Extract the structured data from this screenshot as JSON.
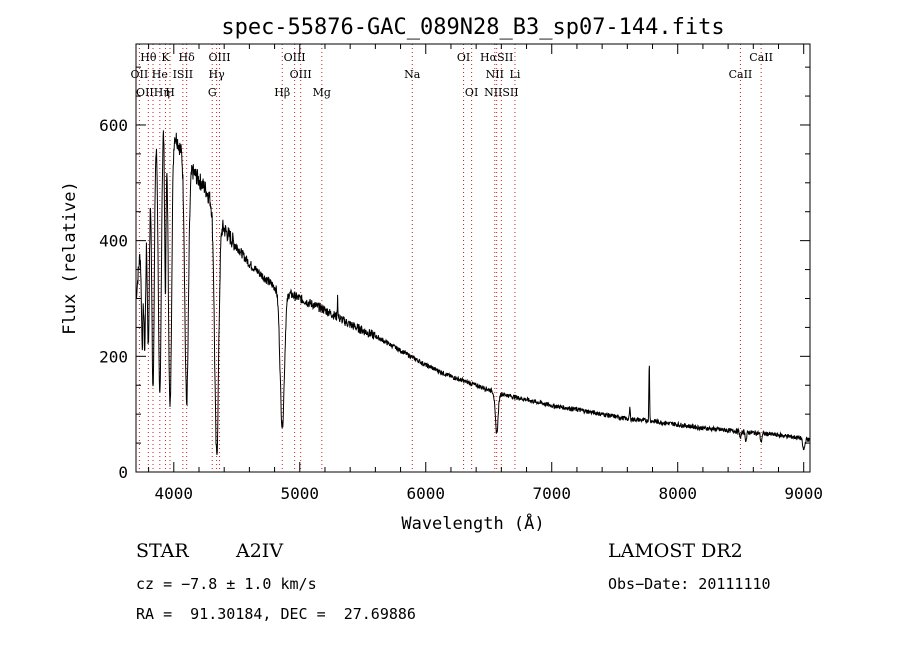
{
  "chart_data": {
    "type": "line",
    "title": "spec-55876-GAC_089N28_B3_sp07-144.fits",
    "xlabel": "Wavelength (Å)",
    "ylabel": "Flux (relative)",
    "xlim": [
      3700,
      9050
    ],
    "ylim": [
      0,
      740
    ],
    "x_ticks": [
      4000,
      5000,
      6000,
      7000,
      8000,
      9000
    ],
    "y_ticks": [
      0,
      200,
      400,
      600
    ],
    "grid": false,
    "series": [
      {
        "name": "spectrum",
        "continuum_points": [
          [
            3700,
            300
          ],
          [
            3760,
            450
          ],
          [
            3820,
            560
          ],
          [
            3880,
            600
          ],
          [
            3950,
            620
          ],
          [
            4050,
            560
          ],
          [
            4150,
            520
          ],
          [
            4250,
            490
          ],
          [
            4400,
            420
          ],
          [
            4500,
            390
          ],
          [
            4600,
            360
          ],
          [
            4700,
            340
          ],
          [
            4800,
            320
          ],
          [
            5000,
            300
          ],
          [
            5200,
            280
          ],
          [
            5400,
            255
          ],
          [
            5600,
            235
          ],
          [
            5800,
            210
          ],
          [
            6000,
            185
          ],
          [
            6200,
            165
          ],
          [
            6400,
            150
          ],
          [
            6600,
            135
          ],
          [
            6800,
            125
          ],
          [
            7000,
            115
          ],
          [
            7200,
            108
          ],
          [
            7400,
            100
          ],
          [
            7600,
            92
          ],
          [
            7800,
            88
          ],
          [
            8000,
            82
          ],
          [
            8200,
            76
          ],
          [
            8400,
            72
          ],
          [
            8600,
            68
          ],
          [
            8800,
            64
          ],
          [
            9000,
            58
          ],
          [
            9050,
            55
          ]
        ],
        "absorption_features": [
          {
            "center": 3750,
            "depth": 200,
            "width": 10
          },
          {
            "center": 3770,
            "depth": 250,
            "width": 10
          },
          {
            "center": 3798,
            "depth": 300,
            "width": 12
          },
          {
            "center": 3835,
            "depth": 420,
            "width": 14
          },
          {
            "center": 3889,
            "depth": 480,
            "width": 16
          },
          {
            "center": 3933,
            "depth": 300,
            "width": 8
          },
          {
            "center": 3970,
            "depth": 500,
            "width": 18
          },
          {
            "center": 4102,
            "depth": 420,
            "width": 20
          },
          {
            "center": 4340,
            "depth": 420,
            "width": 22
          },
          {
            "center": 4861,
            "depth": 235,
            "width": 24
          },
          {
            "center": 6563,
            "depth": 70,
            "width": 16
          },
          {
            "center": 8498,
            "depth": 12,
            "width": 8
          },
          {
            "center": 8542,
            "depth": 15,
            "width": 8
          },
          {
            "center": 8662,
            "depth": 15,
            "width": 8
          },
          {
            "center": 9000,
            "depth": 20,
            "width": 12
          }
        ],
        "emission_features": [
          {
            "center": 5300,
            "height": 40,
            "width": 3
          },
          {
            "center": 7774,
            "height": 100,
            "width": 4
          },
          {
            "center": 7620,
            "height": 20,
            "width": 4
          }
        ],
        "noise_amplitude": 10
      }
    ],
    "line_markers": [
      {
        "label": "Hθ",
        "x": 3798,
        "row": 0
      },
      {
        "label": "K",
        "x": 3934,
        "row": 0
      },
      {
        "label": "Hδ",
        "x": 4102,
        "row": 0
      },
      {
        "label": "OIII",
        "x": 4363,
        "row": 0
      },
      {
        "label": "OIII",
        "x": 4959,
        "row": 0
      },
      {
        "label": "OI",
        "x": 6300,
        "row": 0
      },
      {
        "label": "HαSII",
        "x": 6563,
        "row": 0
      },
      {
        "label": "CaII",
        "x": 8662,
        "row": 0
      },
      {
        "label": "OII",
        "x": 3727,
        "row": 1
      },
      {
        "label": "He",
        "x": 3889,
        "row": 1
      },
      {
        "label": "ISII",
        "x": 4072,
        "row": 1
      },
      {
        "label": "Hγ",
        "x": 4340,
        "row": 1
      },
      {
        "label": "OIII",
        "x": 5007,
        "row": 1
      },
      {
        "label": "Na",
        "x": 5893,
        "row": 1
      },
      {
        "label": "NII",
        "x": 6548,
        "row": 1
      },
      {
        "label": "Li",
        "x": 6708,
        "row": 1
      },
      {
        "label": "CaII",
        "x": 8498,
        "row": 1
      },
      {
        "label": "OIIHη",
        "x": 3835,
        "row": 2
      },
      {
        "label": "H",
        "x": 3970,
        "row": 2
      },
      {
        "label": "G",
        "x": 4305,
        "row": 2
      },
      {
        "label": "Hβ",
        "x": 4861,
        "row": 2
      },
      {
        "label": "Mg",
        "x": 5175,
        "row": 2
      },
      {
        "label": "OI",
        "x": 6364,
        "row": 2
      },
      {
        "label": "NIISII",
        "x": 6600,
        "row": 2
      }
    ],
    "marker_color": "#d02020"
  },
  "info": {
    "object_class": "STAR",
    "subclass": "A2IV",
    "survey": "LAMOST DR2",
    "cz": "cz = −7.8 ± 1.0 km/s",
    "obs_date": "Obs−Date: 20111110",
    "coords": "RA =  91.30184, DEC =  27.69886"
  }
}
